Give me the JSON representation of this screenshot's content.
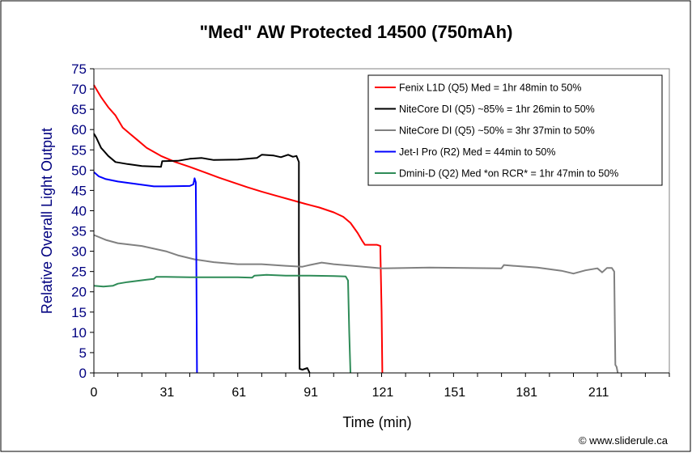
{
  "chart_data": {
    "type": "line",
    "title": "\"Med\" AW Protected 14500 (750mAh)",
    "xlabel": "Time (min)",
    "ylabel": "Relative Overall Light Output",
    "xlim": [
      0,
      240
    ],
    "ylim": [
      0,
      75
    ],
    "x_ticks": [
      "0",
      "31",
      "61",
      "91",
      "121",
      "151",
      "181",
      "211"
    ],
    "x_tick_values": [
      0,
      30.5,
      60.5,
      90.5,
      120.5,
      150.5,
      180.5,
      210.5
    ],
    "y_ticks": [
      "0",
      "5",
      "10",
      "15",
      "20",
      "25",
      "30",
      "35",
      "40",
      "45",
      "50",
      "55",
      "60",
      "65",
      "70",
      "75"
    ],
    "y_tick_values": [
      0,
      5,
      10,
      15,
      20,
      25,
      30,
      35,
      40,
      45,
      50,
      55,
      60,
      65,
      70,
      75
    ],
    "grid": false,
    "legend_position": "top-right",
    "series": [
      {
        "name": "Fenix L1D (Q5) Med = 1hr 48min to 50%",
        "color": "#ff0000",
        "points": [
          [
            0,
            71
          ],
          [
            3,
            68
          ],
          [
            6,
            65.5
          ],
          [
            9,
            63.5
          ],
          [
            12,
            60.5
          ],
          [
            15,
            59
          ],
          [
            18,
            57.5
          ],
          [
            22,
            55.5
          ],
          [
            28,
            53.5
          ],
          [
            34,
            52
          ],
          [
            40,
            50.8
          ],
          [
            46,
            49.5
          ],
          [
            52,
            48.2
          ],
          [
            58,
            47
          ],
          [
            64,
            45.8
          ],
          [
            70,
            44.7
          ],
          [
            76,
            43.7
          ],
          [
            82,
            42.7
          ],
          [
            88,
            41.7
          ],
          [
            94,
            40.8
          ],
          [
            100,
            39.6
          ],
          [
            104,
            38.5
          ],
          [
            107,
            37
          ],
          [
            110,
            34.5
          ],
          [
            112,
            32.5
          ],
          [
            113,
            31.6
          ],
          [
            118,
            31.6
          ],
          [
            119.5,
            31.3
          ],
          [
            119.5,
            30
          ],
          [
            120,
            15
          ],
          [
            120.3,
            0
          ]
        ]
      },
      {
        "name": "NiteCore DI (Q5) ~85% = 1hr 26min to 50%",
        "color": "#000000",
        "points": [
          [
            0,
            59
          ],
          [
            1,
            58
          ],
          [
            3,
            55.5
          ],
          [
            6,
            53.5
          ],
          [
            9,
            52
          ],
          [
            14,
            51.5
          ],
          [
            20,
            51
          ],
          [
            28,
            50.8
          ],
          [
            28.5,
            52.2
          ],
          [
            35,
            52.3
          ],
          [
            40,
            52.8
          ],
          [
            45,
            53
          ],
          [
            50,
            52.5
          ],
          [
            60,
            52.6
          ],
          [
            68,
            53
          ],
          [
            70,
            53.8
          ],
          [
            75,
            53.6
          ],
          [
            78,
            53.2
          ],
          [
            81,
            53.8
          ],
          [
            83,
            53.3
          ],
          [
            84.5,
            53.5
          ],
          [
            85.5,
            52
          ],
          [
            85.5,
            30
          ],
          [
            85.8,
            1
          ],
          [
            87,
            0.8
          ],
          [
            89,
            1.2
          ],
          [
            90,
            0
          ]
        ]
      },
      {
        "name": "NiteCore DI (Q5) ~50% = 3hr 37min to 50%",
        "color": "#808080",
        "points": [
          [
            0,
            34
          ],
          [
            5,
            32.8
          ],
          [
            10,
            32
          ],
          [
            20,
            31.3
          ],
          [
            30,
            30
          ],
          [
            35,
            29
          ],
          [
            42,
            28
          ],
          [
            50,
            27.3
          ],
          [
            60,
            26.8
          ],
          [
            70,
            26.8
          ],
          [
            80,
            26.4
          ],
          [
            87,
            26.2
          ],
          [
            90,
            26.6
          ],
          [
            95,
            27.2
          ],
          [
            100,
            26.8
          ],
          [
            110,
            26.3
          ],
          [
            120,
            25.8
          ],
          [
            140,
            26
          ],
          [
            170,
            25.8
          ],
          [
            171,
            26.6
          ],
          [
            175,
            26.4
          ],
          [
            185,
            26
          ],
          [
            195,
            25.2
          ],
          [
            200,
            24.5
          ],
          [
            205,
            25.3
          ],
          [
            210,
            25.8
          ],
          [
            212,
            24.8
          ],
          [
            214,
            25.9
          ],
          [
            216,
            25.9
          ],
          [
            217,
            25
          ],
          [
            217.3,
            10
          ],
          [
            217.5,
            2
          ],
          [
            218,
            1.5
          ],
          [
            218.5,
            0
          ]
        ]
      },
      {
        "name": "Jet-I Pro (R2) Med = 44min to 50%",
        "color": "#0000ff",
        "points": [
          [
            0,
            49.5
          ],
          [
            2,
            48.5
          ],
          [
            5,
            47.8
          ],
          [
            10,
            47.2
          ],
          [
            15,
            46.8
          ],
          [
            20,
            46.4
          ],
          [
            25,
            46
          ],
          [
            30,
            46
          ],
          [
            40,
            46.1
          ],
          [
            41.5,
            46.5
          ],
          [
            42,
            48
          ],
          [
            42.5,
            47
          ],
          [
            42.7,
            30
          ],
          [
            43,
            0
          ]
        ]
      },
      {
        "name": "Dmini-D (Q2) Med *on RCR* = 1hr 47min to 50%",
        "color": "#2e8b57",
        "points": [
          [
            0,
            21.5
          ],
          [
            4,
            21.3
          ],
          [
            8,
            21.5
          ],
          [
            10,
            22
          ],
          [
            14,
            22.4
          ],
          [
            18,
            22.7
          ],
          [
            22,
            23
          ],
          [
            25,
            23.2
          ],
          [
            26,
            23.7
          ],
          [
            30,
            23.7
          ],
          [
            40,
            23.6
          ],
          [
            50,
            23.6
          ],
          [
            60,
            23.6
          ],
          [
            66,
            23.5
          ],
          [
            67,
            24
          ],
          [
            72,
            24.2
          ],
          [
            80,
            24
          ],
          [
            90,
            24
          ],
          [
            100,
            23.9
          ],
          [
            105,
            23.8
          ],
          [
            106,
            22.8
          ],
          [
            106.5,
            10
          ],
          [
            107,
            0
          ]
        ]
      }
    ]
  },
  "credit": "© www.sliderule.ca"
}
